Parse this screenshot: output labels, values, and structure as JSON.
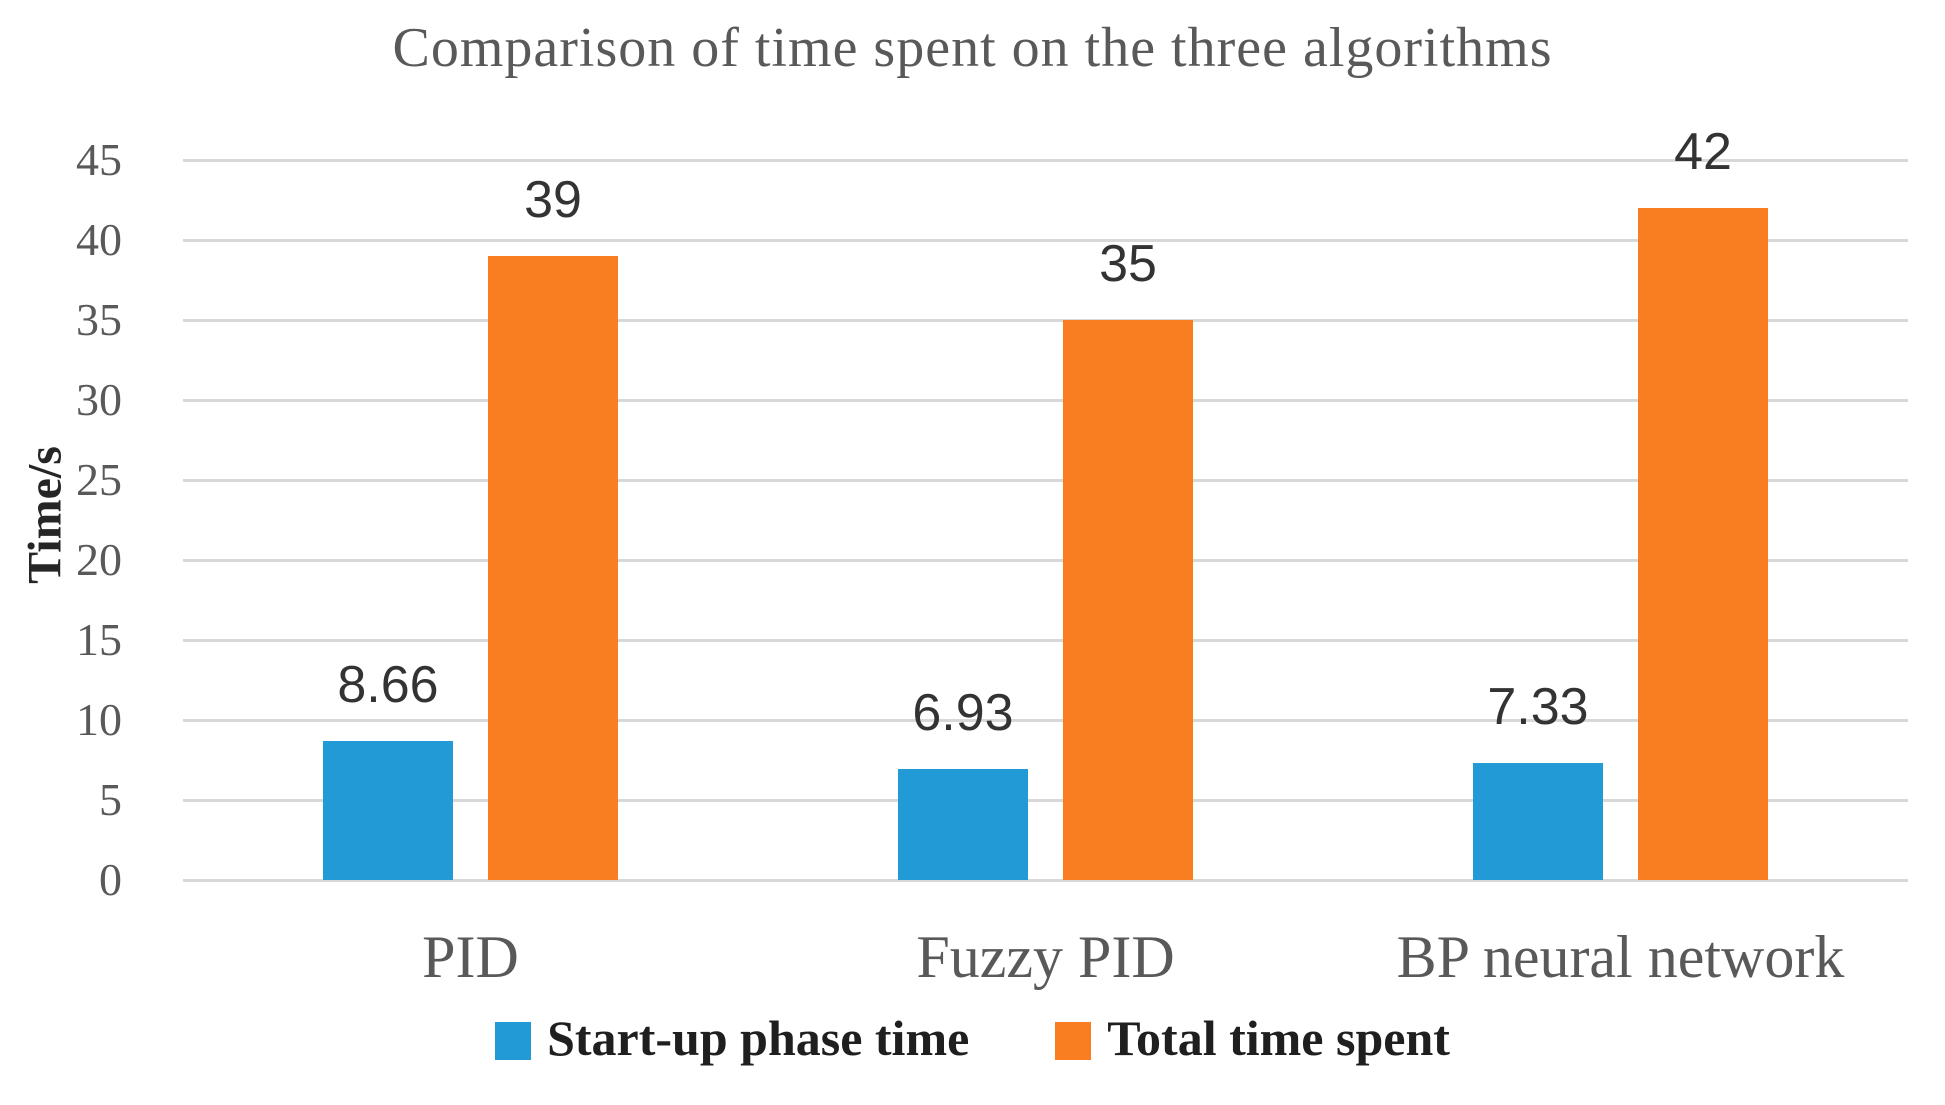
{
  "title": "Comparison of time spent on the three algorithms",
  "colors": {
    "series_blue": "#219ad6",
    "series_orange": "#f87e21",
    "gridline": "#d8d8d8",
    "axis_text": "#595959",
    "label_text": "#333333",
    "legend_text": "#1f1f1f"
  },
  "chart_data": {
    "type": "bar",
    "title": "Comparison of time spent on the three algorithms",
    "categories": [
      "PID",
      "Fuzzy PID",
      "BP neural network"
    ],
    "series": [
      {
        "name": "Start-up phase time",
        "color": "#219ad6",
        "values": [
          8.66,
          6.93,
          7.33
        ],
        "labels": [
          "8.66",
          "6.93",
          "7.33"
        ]
      },
      {
        "name": "Total time spent",
        "color": "#f87e21",
        "values": [
          39,
          35,
          42
        ],
        "labels": [
          "39",
          "35",
          "42"
        ]
      }
    ],
    "xlabel": "",
    "ylabel": "Time/s",
    "ylim": [
      0,
      45
    ],
    "ytick_step": 5,
    "ytick_labels": [
      "0",
      "5",
      "10",
      "15",
      "20",
      "25",
      "30",
      "35",
      "40",
      "45"
    ],
    "grid": true,
    "legend_position": "bottom"
  }
}
